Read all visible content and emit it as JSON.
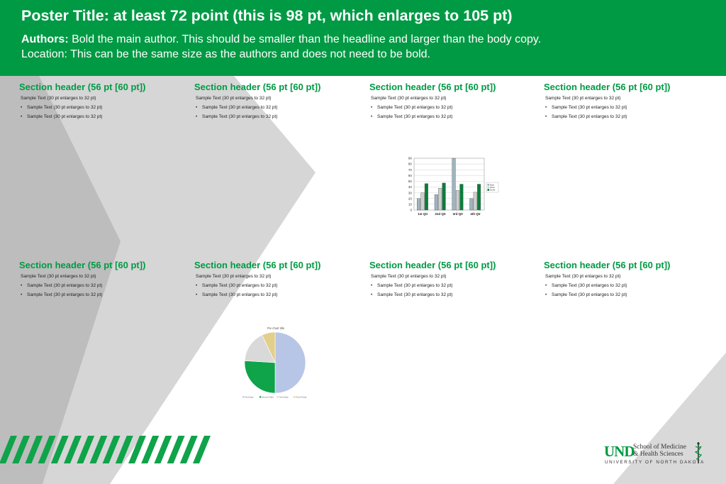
{
  "header": {
    "title": "Poster Title: at least 72 point (this is 98 pt, which enlarges to 105 pt)",
    "authors_label": "Authors:",
    "authors_text": " Bold the main author. This should be smaller than the headline and larger than the body copy.",
    "location": "Location: This can be the same size as the authors and does not need to be bold."
  },
  "sections": [
    {
      "header": "Section header (56 pt [60 pt])",
      "text": "Sample Text (30 pt enlarges to 32 pt)",
      "bullets": [
        "Sample Text (30 pt enlarges to 32 pt)",
        "Sample Text (30 pt enlarges to 32 pt)"
      ]
    },
    {
      "header": "Section header (56 pt [60 pt])",
      "text": "Sample Text (30 pt enlarges to 32 pt)",
      "bullets": [
        "Sample Text (30 pt enlarges to 32 pt)",
        "Sample Text (30 pt enlarges to 32 pt)"
      ]
    },
    {
      "header": "Section header (56 pt [60 pt])",
      "text": "Sample Text (30 pt enlarges to 32 pt)",
      "bullets": [
        "Sample Text (30 pt enlarges to 32 pt)",
        "Sample Text (30 pt enlarges to 32 pt)"
      ]
    },
    {
      "header": "Section header (56 pt [60 pt])",
      "text": "Sample Text (30 pt enlarges to 32 pt)",
      "bullets": [
        "Sample Text (30 pt enlarges to 32 pt)",
        "Sample Text (30 pt enlarges to 32 pt)"
      ]
    },
    {
      "header": "Section header (56 pt [60 pt])",
      "text": "Sample Text (30 pt enlarges to 32 pt)",
      "bullets": [
        "Sample Text (30 pt enlarges to 32 pt)",
        "Sample Text (30 pt enlarges to 32 pt)"
      ]
    },
    {
      "header": "Section header (56 pt [60 pt])",
      "text": "Sample Text (30 pt enlarges to 32 pt)",
      "bullets": [
        "Sample Text (30 pt enlarges to 32 pt)",
        "Sample Text (30 pt enlarges to 32 pt)"
      ]
    },
    {
      "header": "Section header (56 pt [60 pt])",
      "text": "Sample Text (30 pt enlarges to 32 pt)",
      "bullets": [
        "Sample Text (30 pt enlarges to 32 pt)",
        "Sample Text (30 pt enlarges to 32 pt)"
      ]
    },
    {
      "header": "Section header (56 pt [60 pt])",
      "text": "Sample Text (30 pt enlarges to 32 pt)",
      "bullets": [
        "Sample Text (30 pt enlarges to 32 pt)",
        "Sample Text (30 pt enlarges to 32 pt)"
      ]
    }
  ],
  "chart_data": [
    {
      "type": "bar",
      "categories": [
        "1st Qtr",
        "2nd Qtr",
        "3rd Qtr",
        "4th Qtr"
      ],
      "series": [
        {
          "name": "East",
          "values": [
            20,
            27,
            90,
            20
          ],
          "color": "#9fb4bf"
        },
        {
          "name": "West",
          "values": [
            30,
            38,
            34,
            31
          ],
          "color": "#cfcfcf"
        },
        {
          "name": "North",
          "values": [
            46,
            47,
            45,
            45
          ],
          "color": "#0a7d3a"
        }
      ],
      "yticks": [
        0,
        10,
        20,
        30,
        40,
        50,
        60,
        70,
        80,
        90
      ],
      "ylim": [
        0,
        90
      ],
      "legend": "right"
    },
    {
      "type": "pie",
      "title": "Pie chart title",
      "categories": [
        "First Data",
        "Second Data",
        "Third Data",
        "Fourth Data"
      ],
      "values": [
        50,
        26,
        17,
        7
      ],
      "colors": [
        "#b7c6e6",
        "#0fa34a",
        "#d9d9d9",
        "#e2cf8b"
      ]
    }
  ],
  "logo": {
    "und": "UND",
    "school": "School of Medicine",
    "health": "& Health Sciences",
    "university": "UNIVERSITY OF NORTH DAKOTA"
  },
  "colors": {
    "brand_green": "#009a44",
    "bg_gray_light": "#d6d6d6",
    "bg_gray_dark": "#bcbcbc"
  }
}
